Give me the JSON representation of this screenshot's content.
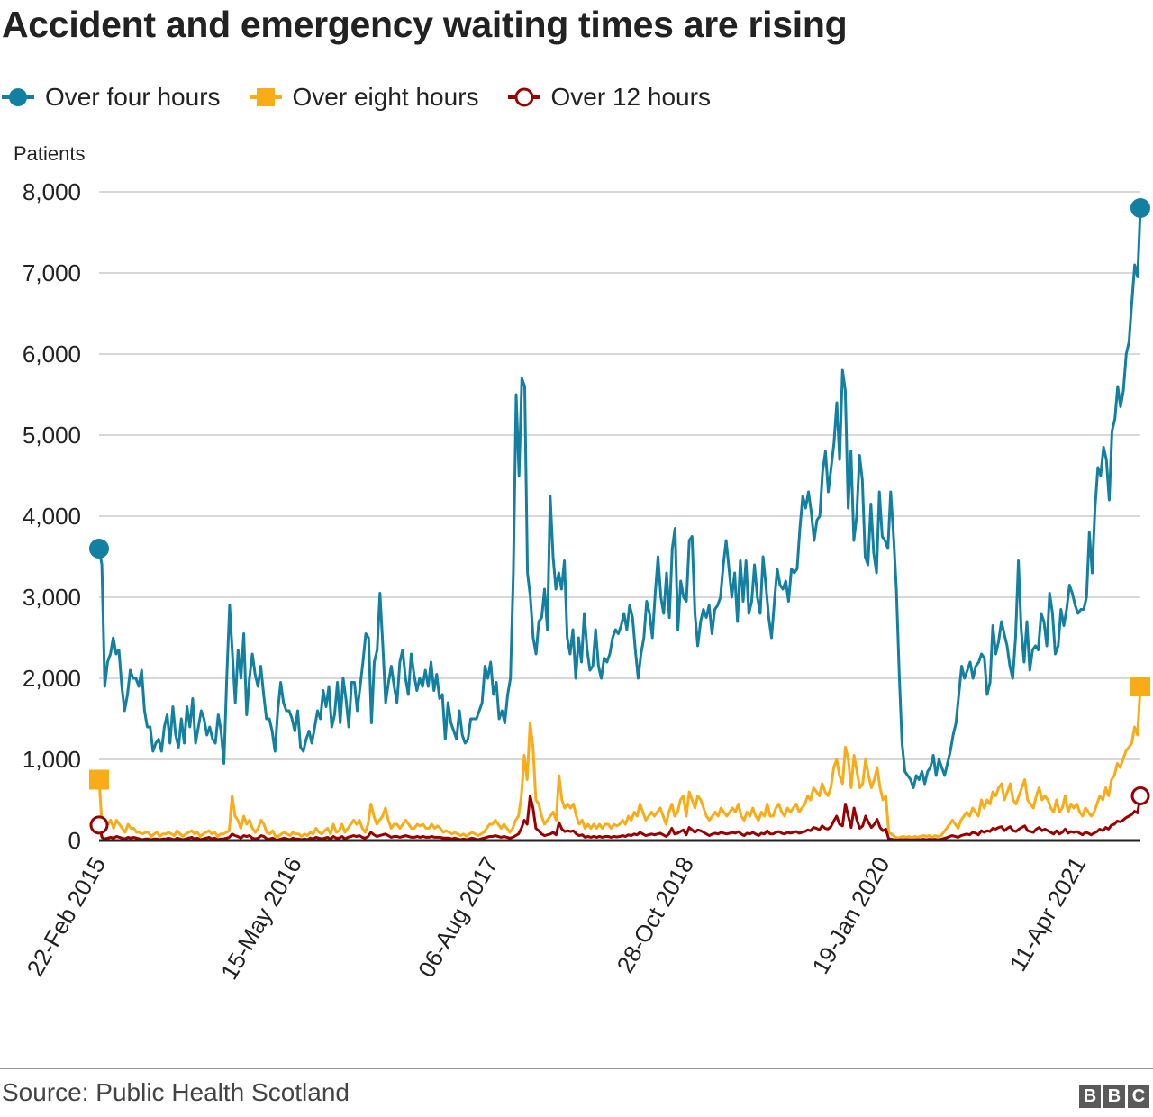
{
  "chart_data": {
    "type": "line",
    "title": "Accident and emergency waiting times are rising",
    "ylabel": "Patients",
    "ylim": [
      0,
      8000
    ],
    "yticks": [
      0,
      1000,
      2000,
      3000,
      4000,
      5000,
      6000,
      7000,
      8000
    ],
    "ytick_labels": [
      "0",
      "1,000",
      "2,000",
      "3,000",
      "4,000",
      "5,000",
      "6,000",
      "7,000",
      "8,000"
    ],
    "x_start": "22-Feb 2015",
    "x_end": "29-Aug 2021",
    "x_step": "week",
    "x_tick_labels": [
      "22-Feb 2015",
      "15-May 2016",
      "06-Aug 2017",
      "28-Oct 2018",
      "19-Jan 2020",
      "11-Apr 2021"
    ],
    "grid": "horizontal",
    "legend_position": "top",
    "source": "Source: Public Health Scotland",
    "series": [
      {
        "name": "Over four hours",
        "color": "#1380A1",
        "marker": "circle-filled",
        "values": [
          3600,
          3400,
          1900,
          2200,
          2300,
          2500,
          2300,
          2350,
          1900,
          1600,
          1800,
          2100,
          2000,
          2000,
          1900,
          2100,
          1600,
          1400,
          1400,
          1100,
          1200,
          1250,
          1100,
          1400,
          1550,
          1200,
          1650,
          1300,
          1150,
          1500,
          1200,
          1650,
          1400,
          1750,
          1200,
          1400,
          1600,
          1500,
          1300,
          1400,
          1250,
          1200,
          1550,
          1350,
          950,
          2000,
          2900,
          2300,
          1700,
          2350,
          2000,
          2550,
          1550,
          2000,
          2300,
          2050,
          1900,
          2150,
          1800,
          1500,
          1500,
          1350,
          1100,
          1600,
          1950,
          1700,
          1600,
          1600,
          1500,
          1350,
          1600,
          1150,
          1100,
          1250,
          1350,
          1200,
          1400,
          1600,
          1500,
          1850,
          1650,
          1900,
          1400,
          1550,
          1950,
          1450,
          2000,
          1750,
          1400,
          1950,
          1950,
          1600,
          1900,
          2200,
          2550,
          2500,
          1450,
          2200,
          2350,
          3050,
          2400,
          1700,
          1950,
          2150,
          1900,
          1700,
          2200,
          2350,
          2000,
          1800,
          2300,
          2050,
          1850,
          2000,
          1900,
          2100,
          1900,
          2200,
          1850,
          2050,
          1750,
          1800,
          1250,
          1700,
          1450,
          1350,
          1250,
          1600,
          1300,
          1200,
          1250,
          1500,
          1500,
          1500,
          1600,
          1700,
          2150,
          2000,
          2200,
          1800,
          1950,
          1500,
          1600,
          1450,
          1800,
          2000,
          3300,
          5500,
          4500,
          5700,
          5600,
          3300,
          3000,
          2500,
          2300,
          2700,
          2750,
          3100,
          2600,
          4250,
          3500,
          3100,
          3300,
          3100,
          3450,
          2500,
          2300,
          2600,
          2000,
          2500,
          2200,
          2800,
          2350,
          2100,
          2150,
          2600,
          2150,
          2000,
          2250,
          2200,
          2300,
          2500,
          2600,
          2550,
          2650,
          2800,
          2600,
          2900,
          2750,
          2350,
          2000,
          2300,
          2500,
          2950,
          2800,
          2500,
          3050,
          3500,
          3000,
          2800,
          3300,
          2750,
          3600,
          3850,
          2600,
          3200,
          3000,
          2950,
          3700,
          3750,
          2800,
          2400,
          2700,
          2850,
          2750,
          2900,
          2550,
          2850,
          2900,
          3000,
          3400,
          3700,
          3350,
          3000,
          3300,
          2700,
          3450,
          2950,
          3450,
          2800,
          2950,
          3400,
          3000,
          2800,
          3500,
          3150,
          2750,
          2500,
          2950,
          3350,
          3150,
          3100,
          3200,
          2950,
          3350,
          3300,
          3350,
          3850,
          4250,
          4100,
          4300,
          4050,
          3700,
          3950,
          4000,
          4550,
          4800,
          4300,
          4600,
          4900,
          5400,
          4700,
          5800,
          5550,
          4100,
          4800,
          3700,
          4000,
          4750,
          4450,
          3500,
          3400,
          4150,
          3550,
          3300,
          4300,
          3750,
          3700,
          3600,
          4300,
          3750,
          3100,
          2050,
          1200,
          850,
          800,
          750,
          650,
          800,
          750,
          850,
          700,
          850,
          900,
          1050,
          800,
          1000,
          900,
          800,
          950,
          1100,
          1300,
          1450,
          1800,
          2150,
          2000,
          2100,
          2200,
          2000,
          2150,
          2200,
          2300,
          2250,
          1800,
          1950,
          2650,
          2300,
          2450,
          2700,
          2550,
          2400,
          2150,
          2000,
          2500,
          3450,
          2600,
          2200,
          2700,
          2100,
          2350,
          2400,
          2350,
          2800,
          2700,
          2400,
          3050,
          2800,
          2300,
          2400,
          2850,
          2650,
          2850,
          3150,
          3050,
          2900,
          2800,
          2850,
          2850,
          3000,
          3800,
          3300,
          4100,
          4600,
          4500,
          4850,
          4700,
          4200,
          5050,
          5200,
          5600,
          5350,
          5550,
          6000,
          6150,
          6650,
          7100,
          6950,
          7800
        ]
      },
      {
        "name": "Over eight hours",
        "color": "#FAAB18",
        "marker": "square-filled",
        "values": [
          750,
          200,
          150,
          200,
          250,
          150,
          250,
          200,
          150,
          100,
          200,
          150,
          150,
          100,
          100,
          80,
          100,
          100,
          50,
          80,
          100,
          50,
          80,
          80,
          100,
          80,
          60,
          120,
          80,
          50,
          80,
          100,
          120,
          80,
          100,
          50,
          80,
          100,
          120,
          80,
          100,
          50,
          80,
          80,
          100,
          120,
          550,
          300,
          250,
          150,
          300,
          200,
          250,
          150,
          100,
          150,
          250,
          200,
          100,
          80,
          120,
          50,
          50,
          80,
          100,
          80,
          60,
          100,
          80,
          80,
          50,
          80,
          60,
          100,
          80,
          150,
          100,
          80,
          120,
          150,
          80,
          200,
          100,
          120,
          200,
          100,
          150,
          200,
          250,
          200,
          250,
          150,
          100,
          200,
          450,
          300,
          200,
          250,
          300,
          400,
          250,
          150,
          200,
          200,
          150,
          200,
          250,
          200,
          150,
          150,
          200,
          180,
          200,
          150,
          150,
          200,
          150,
          180,
          150,
          100,
          120,
          100,
          80,
          100,
          80,
          60,
          80,
          50,
          80,
          100,
          80,
          60,
          80,
          100,
          150,
          200,
          200,
          250,
          200,
          150,
          200,
          150,
          100,
          150,
          250,
          300,
          550,
          1050,
          750,
          1450,
          1150,
          500,
          450,
          300,
          200,
          250,
          300,
          350,
          250,
          800,
          500,
          400,
          450,
          400,
          450,
          300,
          200,
          250,
          150,
          200,
          150,
          200,
          150,
          200,
          150,
          200,
          200,
          150,
          200,
          180,
          200,
          250,
          200,
          300,
          250,
          350,
          300,
          450,
          350,
          250,
          300,
          350,
          300,
          350,
          400,
          300,
          200,
          350,
          450,
          300,
          350,
          500,
          550,
          300,
          600,
          500,
          400,
          550,
          500,
          400,
          300,
          250,
          300,
          350,
          300,
          400,
          350,
          300,
          350,
          400,
          350,
          450,
          300,
          250,
          350,
          300,
          400,
          300,
          250,
          350,
          300,
          450,
          300,
          300,
          400,
          450,
          350,
          300,
          400,
          350,
          400,
          450,
          350,
          400,
          450,
          550,
          500,
          650,
          600,
          550,
          700,
          600,
          550,
          650,
          900,
          1000,
          800,
          700,
          1150,
          1000,
          650,
          1050,
          850,
          650,
          700,
          1000,
          800,
          650,
          750,
          900,
          650,
          500,
          550,
          100,
          80,
          50,
          30,
          40,
          50,
          40,
          50,
          30,
          50,
          40,
          50,
          60,
          50,
          60,
          40,
          60,
          50,
          60,
          100,
          150,
          200,
          250,
          200,
          150,
          250,
          300,
          350,
          300,
          400,
          350,
          300,
          500,
          400,
          500,
          450,
          600,
          550,
          650,
          700,
          500,
          600,
          700,
          500,
          450,
          550,
          650,
          750,
          500,
          450,
          400,
          550,
          650,
          500,
          550,
          500,
          400,
          350,
          500,
          350,
          400,
          550,
          350,
          450,
          400,
          450,
          350,
          300,
          400,
          350,
          300,
          350,
          450,
          550,
          500,
          650,
          550,
          750,
          800,
          950,
          900,
          1000,
          1100,
          1150,
          1200,
          1400,
          1300,
          1900
        ]
      },
      {
        "name": "Over 12 hours",
        "color": "#990000",
        "marker": "circle-open",
        "values": [
          190,
          40,
          20,
          30,
          40,
          30,
          50,
          40,
          30,
          20,
          40,
          30,
          40,
          30,
          20,
          10,
          20,
          20,
          10,
          20,
          20,
          10,
          20,
          20,
          30,
          20,
          10,
          30,
          20,
          10,
          20,
          30,
          40,
          20,
          30,
          10,
          20,
          30,
          40,
          20,
          30,
          10,
          20,
          20,
          30,
          40,
          80,
          60,
          50,
          30,
          60,
          50,
          60,
          30,
          20,
          30,
          60,
          50,
          20,
          20,
          30,
          10,
          10,
          20,
          30,
          20,
          10,
          30,
          20,
          20,
          10,
          20,
          10,
          30,
          20,
          40,
          30,
          20,
          30,
          40,
          20,
          50,
          30,
          30,
          50,
          20,
          40,
          50,
          60,
          50,
          60,
          40,
          30,
          50,
          100,
          70,
          50,
          60,
          70,
          80,
          60,
          40,
          50,
          50,
          40,
          50,
          60,
          50,
          40,
          40,
          50,
          40,
          50,
          40,
          40,
          50,
          40,
          40,
          40,
          30,
          30,
          30,
          20,
          30,
          20,
          10,
          20,
          10,
          20,
          30,
          20,
          10,
          20,
          30,
          40,
          50,
          50,
          60,
          50,
          40,
          50,
          40,
          30,
          40,
          60,
          80,
          150,
          250,
          200,
          550,
          400,
          150,
          120,
          80,
          60,
          70,
          80,
          100,
          70,
          220,
          140,
          110,
          120,
          110,
          120,
          80,
          60,
          70,
          40,
          50,
          40,
          50,
          40,
          50,
          40,
          50,
          50,
          40,
          50,
          45,
          50,
          60,
          50,
          70,
          60,
          80,
          70,
          100,
          80,
          60,
          70,
          80,
          70,
          80,
          90,
          70,
          50,
          80,
          150,
          80,
          90,
          110,
          130,
          70,
          160,
          130,
          100,
          130,
          120,
          100,
          80,
          60,
          80,
          90,
          80,
          100,
          90,
          80,
          90,
          100,
          90,
          110,
          80,
          60,
          90,
          80,
          100,
          80,
          60,
          90,
          80,
          120,
          80,
          80,
          100,
          110,
          90,
          80,
          100,
          90,
          100,
          110,
          90,
          100,
          110,
          130,
          120,
          160,
          150,
          130,
          180,
          150,
          140,
          170,
          240,
          300,
          200,
          180,
          450,
          300,
          160,
          400,
          250,
          150,
          180,
          300,
          220,
          160,
          200,
          260,
          160,
          120,
          140,
          20,
          15,
          10,
          5,
          10,
          10,
          10,
          10,
          5,
          10,
          10,
          10,
          15,
          10,
          15,
          10,
          15,
          10,
          15,
          25,
          35,
          50,
          60,
          50,
          40,
          60,
          70,
          80,
          70,
          100,
          90,
          70,
          120,
          100,
          120,
          110,
          150,
          140,
          160,
          170,
          120,
          150,
          170,
          120,
          110,
          140,
          160,
          180,
          120,
          110,
          100,
          140,
          160,
          120,
          140,
          120,
          100,
          80,
          120,
          80,
          100,
          140,
          90,
          110,
          100,
          110,
          90,
          70,
          100,
          90,
          70,
          90,
          110,
          140,
          120,
          160,
          140,
          190,
          200,
          240,
          230,
          250,
          280,
          300,
          320,
          360,
          340,
          550
        ]
      }
    ]
  }
}
